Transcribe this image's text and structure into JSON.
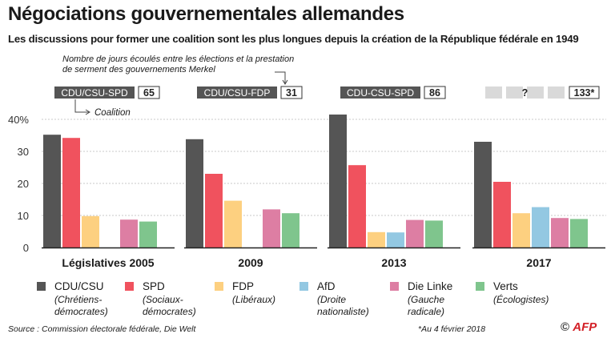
{
  "title": "Négociations gouvernementales allemandes",
  "subtitle": "Les discussions pour former une coalition sont les plus longues depuis la création de la République fédérale en 1949",
  "note": "Nombre de jours écoulés entre les élections et la prestation de serment des gouvernements Merkel",
  "coalition_label": "Coalition",
  "source": "Source : Commission électorale fédérale, Die Welt",
  "as_of": "*Au 4 février 2018",
  "logo": "AFP",
  "colors": {
    "CDU/CSU": "#555555",
    "SPD": "#f0525e",
    "FDP": "#fdd080",
    "AfD": "#93c8e2",
    "Die Linke": "#dd7ea3",
    "Verts": "#7fc58d",
    "coalition_box": "#555555",
    "unknown_box": "#d9d9d9"
  },
  "legend": [
    {
      "party": "CDU/CSU",
      "desc": "(Chrétiens-\ndémocrates)"
    },
    {
      "party": "SPD",
      "desc": "(Sociaux-\ndémocrates)"
    },
    {
      "party": "FDP",
      "desc": "(Libéraux)"
    },
    {
      "party": "AfD",
      "desc": "(Droite\nnationaliste)"
    },
    {
      "party": "Die Linke",
      "desc": "(Gauche\nradicale)"
    },
    {
      "party": "Verts",
      "desc": "(Écologistes)"
    }
  ],
  "chart_data": {
    "type": "bar",
    "series_order": [
      "CDU/CSU",
      "SPD",
      "FDP",
      "AfD",
      "Die Linke",
      "Verts"
    ],
    "yticks": [
      "0",
      "10",
      "20",
      "30",
      "40%"
    ],
    "ylim": [
      0,
      45
    ],
    "panels": [
      {
        "label": "Législatives 2005",
        "coalition": "CDU/CSU-SPD",
        "days": "65",
        "values": {
          "CDU/CSU": 35.2,
          "SPD": 34.2,
          "FDP": 9.8,
          "AfD": null,
          "Die Linke": 8.7,
          "Verts": 8.1
        }
      },
      {
        "label": "2009",
        "coalition": "CDU/CSU-FDP",
        "days": "31",
        "values": {
          "CDU/CSU": 33.8,
          "SPD": 23.0,
          "FDP": 14.6,
          "AfD": null,
          "Die Linke": 11.9,
          "Verts": 10.7
        }
      },
      {
        "label": "2013",
        "coalition": "CDU-CSU-SPD",
        "days": "86",
        "values": {
          "CDU/CSU": 41.5,
          "SPD": 25.7,
          "FDP": 4.8,
          "AfD": 4.7,
          "Die Linke": 8.6,
          "Verts": 8.4
        }
      },
      {
        "label": "2017",
        "coalition": "?",
        "days": "133*",
        "values": {
          "CDU/CSU": 33.0,
          "SPD": 20.5,
          "FDP": 10.7,
          "AfD": 12.6,
          "Die Linke": 9.2,
          "Verts": 8.9
        }
      }
    ]
  }
}
